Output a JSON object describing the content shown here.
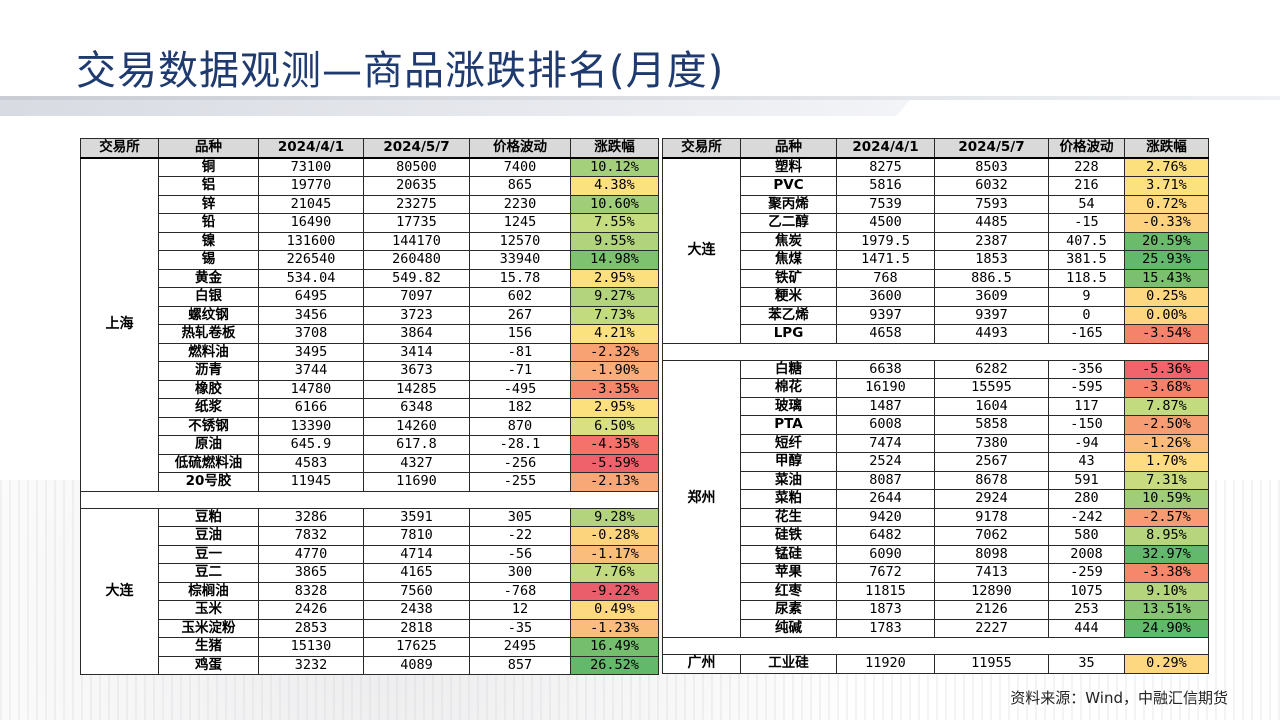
{
  "title": "交易数据观测—商品涨跌排名(月度)",
  "headers": [
    "交易所",
    "品种",
    "2024/4/1",
    "2024/5/7",
    "价格波动",
    "涨跌幅"
  ],
  "left_groups": [
    {
      "exchange": "上海",
      "rows": [
        {
          "name": "铜",
          "v1": "73100",
          "v2": "80500",
          "diff": "7400",
          "pct": "10.12%",
          "color": "#a4cf7b"
        },
        {
          "name": "铝",
          "v1": "19770",
          "v2": "20635",
          "diff": "865",
          "pct": "4.38%",
          "color": "#fbe27f"
        },
        {
          "name": "锌",
          "v1": "21045",
          "v2": "23275",
          "diff": "2230",
          "pct": "10.60%",
          "color": "#9fcd78"
        },
        {
          "name": "铅",
          "v1": "16490",
          "v2": "17735",
          "diff": "1245",
          "pct": "7.55%",
          "color": "#c5dc7f"
        },
        {
          "name": "镍",
          "v1": "131600",
          "v2": "144170",
          "diff": "12570",
          "pct": "9.55%",
          "color": "#b0d37c"
        },
        {
          "name": "锡",
          "v1": "226540",
          "v2": "260480",
          "diff": "33940",
          "pct": "14.98%",
          "color": "#7ec16f"
        },
        {
          "name": "黄金",
          "v1": "534.04",
          "v2": "549.82",
          "diff": "15.78",
          "pct": "2.95%",
          "color": "#fde07e"
        },
        {
          "name": "白银",
          "v1": "6495",
          "v2": "7097",
          "diff": "602",
          "pct": "9.27%",
          "color": "#b3d47c"
        },
        {
          "name": "螺纹钢",
          "v1": "3456",
          "v2": "3723",
          "diff": "267",
          "pct": "7.73%",
          "color": "#c3db7f"
        },
        {
          "name": "热轧卷板",
          "v1": "3708",
          "v2": "3864",
          "diff": "156",
          "pct": "4.21%",
          "color": "#fbe27f"
        },
        {
          "name": "燃料油",
          "v1": "3495",
          "v2": "3414",
          "diff": "-81",
          "pct": "-2.32%",
          "color": "#f8a274"
        },
        {
          "name": "沥青",
          "v1": "3744",
          "v2": "3673",
          "diff": "-71",
          "pct": "-1.90%",
          "color": "#f9ad78"
        },
        {
          "name": "橡胶",
          "v1": "14780",
          "v2": "14285",
          "diff": "-495",
          "pct": "-3.35%",
          "color": "#f6876b"
        },
        {
          "name": "纸浆",
          "v1": "6166",
          "v2": "6348",
          "diff": "182",
          "pct": "2.95%",
          "color": "#fde07e"
        },
        {
          "name": "不锈钢",
          "v1": "13390",
          "v2": "14260",
          "diff": "870",
          "pct": "6.50%",
          "color": "#d9e082"
        },
        {
          "name": "原油",
          "v1": "645.9",
          "v2": "617.8",
          "diff": "-28.1",
          "pct": "-4.35%",
          "color": "#f4726a"
        },
        {
          "name": "低硫燃料油",
          "v1": "4583",
          "v2": "4327",
          "diff": "-256",
          "pct": "-5.59%",
          "color": "#f0626b"
        },
        {
          "name": "20号胶",
          "v1": "11945",
          "v2": "11690",
          "diff": "-255",
          "pct": "-2.13%",
          "color": "#f8a776"
        }
      ]
    },
    {
      "exchange": "大连",
      "rows": [
        {
          "name": "豆粕",
          "v1": "3286",
          "v2": "3591",
          "diff": "305",
          "pct": "9.28%",
          "color": "#b3d47c"
        },
        {
          "name": "豆油",
          "v1": "7832",
          "v2": "7810",
          "diff": "-22",
          "pct": "-0.28%",
          "color": "#fdd47e"
        },
        {
          "name": "豆一",
          "v1": "4770",
          "v2": "4714",
          "diff": "-56",
          "pct": "-1.17%",
          "color": "#fbbd7b"
        },
        {
          "name": "豆二",
          "v1": "3865",
          "v2": "4165",
          "diff": "300",
          "pct": "7.76%",
          "color": "#c3db7f"
        },
        {
          "name": "棕榈油",
          "v1": "8328",
          "v2": "7560",
          "diff": "-768",
          "pct": "-9.22%",
          "color": "#ea5e6b"
        },
        {
          "name": "玉米",
          "v1": "2426",
          "v2": "2438",
          "diff": "12",
          "pct": "0.49%",
          "color": "#fed980"
        },
        {
          "name": "玉米淀粉",
          "v1": "2853",
          "v2": "2818",
          "diff": "-35",
          "pct": "-1.23%",
          "color": "#fbbd7b"
        },
        {
          "name": "生猪",
          "v1": "15130",
          "v2": "17625",
          "diff": "2495",
          "pct": "16.49%",
          "color": "#75be6e"
        },
        {
          "name": "鸡蛋",
          "v1": "3232",
          "v2": "4089",
          "diff": "857",
          "pct": "26.52%",
          "color": "#63b96b"
        }
      ]
    }
  ],
  "right_groups": [
    {
      "exchange": "大连",
      "rows": [
        {
          "name": "塑料",
          "v1": "8275",
          "v2": "8503",
          "diff": "228",
          "pct": "2.76%",
          "color": "#fde07e"
        },
        {
          "name": "PVC",
          "v1": "5816",
          "v2": "6032",
          "diff": "216",
          "pct": "3.71%",
          "color": "#fbe27f"
        },
        {
          "name": "聚丙烯",
          "v1": "7539",
          "v2": "7593",
          "diff": "54",
          "pct": "0.72%",
          "color": "#fed980"
        },
        {
          "name": "乙二醇",
          "v1": "4500",
          "v2": "4485",
          "diff": "-15",
          "pct": "-0.33%",
          "color": "#fdd27e"
        },
        {
          "name": "焦炭",
          "v1": "1979.5",
          "v2": "2387",
          "diff": "407.5",
          "pct": "20.59%",
          "color": "#6bbb6c"
        },
        {
          "name": "焦煤",
          "v1": "1471.5",
          "v2": "1853",
          "diff": "381.5",
          "pct": "25.93%",
          "color": "#63b96b"
        },
        {
          "name": "铁矿",
          "v1": "768",
          "v2": "886.5",
          "diff": "118.5",
          "pct": "15.43%",
          "color": "#7bc06f"
        },
        {
          "name": "粳米",
          "v1": "3600",
          "v2": "3609",
          "diff": "9",
          "pct": "0.25%",
          "color": "#fed880"
        },
        {
          "name": "苯乙烯",
          "v1": "9397",
          "v2": "9397",
          "diff": "0",
          "pct": "0.00%",
          "color": "#fed680"
        },
        {
          "name": "LPG",
          "v1": "4658",
          "v2": "4493",
          "diff": "-165",
          "pct": "-3.54%",
          "color": "#f5836b"
        }
      ]
    },
    {
      "exchange": "郑州",
      "rows": [
        {
          "name": "白糖",
          "v1": "6638",
          "v2": "6282",
          "diff": "-356",
          "pct": "-5.36%",
          "color": "#f1646b"
        },
        {
          "name": "棉花",
          "v1": "16190",
          "v2": "15595",
          "diff": "-595",
          "pct": "-3.68%",
          "color": "#f5816b"
        },
        {
          "name": "玻璃",
          "v1": "1487",
          "v2": "1604",
          "diff": "117",
          "pct": "7.87%",
          "color": "#c2db7f"
        },
        {
          "name": "PTA",
          "v1": "6008",
          "v2": "5858",
          "diff": "-150",
          "pct": "-2.50%",
          "color": "#f79d73"
        },
        {
          "name": "短纤",
          "v1": "7474",
          "v2": "7380",
          "diff": "-94",
          "pct": "-1.26%",
          "color": "#fbbc7b"
        },
        {
          "name": "甲醇",
          "v1": "2524",
          "v2": "2567",
          "diff": "43",
          "pct": "1.70%",
          "color": "#fedc7f"
        },
        {
          "name": "菜油",
          "v1": "8087",
          "v2": "8678",
          "diff": "591",
          "pct": "7.31%",
          "color": "#c8dc7f"
        },
        {
          "name": "菜粕",
          "v1": "2644",
          "v2": "2924",
          "diff": "280",
          "pct": "10.59%",
          "color": "#9fcd78"
        },
        {
          "name": "花生",
          "v1": "9420",
          "v2": "9178",
          "diff": "-242",
          "pct": "-2.57%",
          "color": "#f79b72"
        },
        {
          "name": "硅铁",
          "v1": "6482",
          "v2": "7062",
          "diff": "580",
          "pct": "8.95%",
          "color": "#b6d57c"
        },
        {
          "name": "锰硅",
          "v1": "6090",
          "v2": "8098",
          "diff": "2008",
          "pct": "32.97%",
          "color": "#63b96b"
        },
        {
          "name": "苹果",
          "v1": "7672",
          "v2": "7413",
          "diff": "-259",
          "pct": "-3.38%",
          "color": "#f6876b"
        },
        {
          "name": "红枣",
          "v1": "11815",
          "v2": "12890",
          "diff": "1075",
          "pct": "9.10%",
          "color": "#b5d57c"
        },
        {
          "name": "尿素",
          "v1": "1873",
          "v2": "2126",
          "diff": "253",
          "pct": "13.51%",
          "color": "#88c572"
        },
        {
          "name": "纯碱",
          "v1": "1783",
          "v2": "2227",
          "diff": "444",
          "pct": "24.90%",
          "color": "#63b96b"
        }
      ]
    },
    {
      "exchange": "广州",
      "rows": [
        {
          "name": "工业硅",
          "v1": "11920",
          "v2": "11955",
          "diff": "35",
          "pct": "0.29%",
          "color": "#fed880"
        }
      ]
    }
  ],
  "source": "资料来源：Wind，中融汇信期货"
}
